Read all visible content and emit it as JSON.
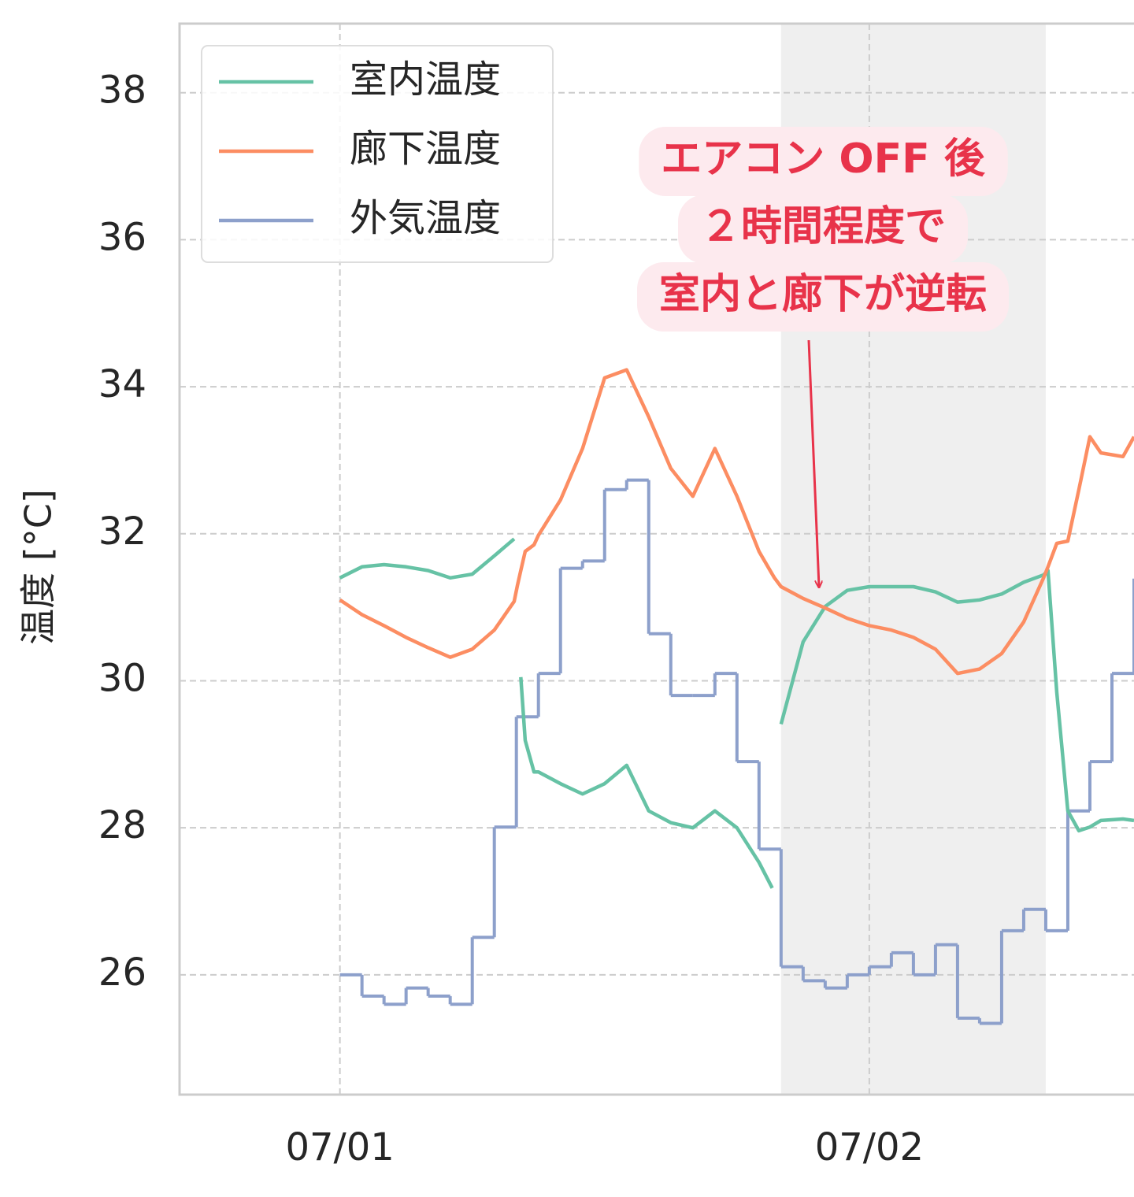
{
  "chart_data": {
    "type": "line",
    "ylabel": "温度 [°C]",
    "x": [
      0,
      1,
      2,
      3,
      4,
      5,
      6,
      7,
      7.9,
      8.05,
      8.2,
      8.4,
      8.8,
      9,
      10,
      11,
      12,
      13,
      14,
      15,
      16,
      17,
      18,
      19,
      19.6,
      19.7,
      20,
      21,
      22,
      23,
      24,
      25,
      26,
      27,
      28,
      29,
      30,
      31,
      31.9,
      32.1,
      32.5,
      33,
      33.5,
      34,
      34.5,
      35.5,
      36
    ],
    "series": [
      {
        "name": "室内温度",
        "color": "#66c2a5",
        "values": [
          31.4,
          31.55,
          31.58,
          31.55,
          31.5,
          31.4,
          31.45,
          31.7,
          31.93,
          null,
          30.05,
          29.19,
          28.76,
          28.76,
          28.6,
          28.46,
          28.6,
          28.85,
          28.23,
          28.07,
          28.0,
          28.23,
          28.0,
          27.53,
          27.18,
          null,
          29.41,
          30.53,
          31.01,
          31.23,
          31.28,
          31.28,
          31.28,
          31.21,
          31.07,
          31.1,
          31.18,
          31.34,
          31.44,
          31.5,
          29.84,
          28.23,
          27.96,
          28.01,
          28.1,
          28.12,
          28.1
        ]
      },
      {
        "name": "廊下温度",
        "color": "#fc8d62",
        "values": [
          31.1,
          30.9,
          30.75,
          30.59,
          30.45,
          30.32,
          30.43,
          30.69,
          31.08,
          31.3,
          31.5,
          31.76,
          31.85,
          31.98,
          32.46,
          33.16,
          34.12,
          34.23,
          33.59,
          32.89,
          32.51,
          33.16,
          32.51,
          31.76,
          31.45,
          31.4,
          31.28,
          31.12,
          30.99,
          30.85,
          30.75,
          30.69,
          30.59,
          30.43,
          30.1,
          30.16,
          30.37,
          30.8,
          31.4,
          31.55,
          31.87,
          31.9,
          32.6,
          33.32,
          33.1,
          33.05,
          33.32
        ]
      }
    ],
    "steps": {
      "name": "外気温度",
      "color": "#8da0cb",
      "x": [
        0,
        1,
        2,
        3,
        4,
        5,
        6,
        7,
        8,
        9,
        10,
        11,
        12,
        13,
        14,
        15,
        16,
        17,
        18,
        19,
        20,
        21,
        22,
        23,
        24,
        25,
        26,
        27,
        28,
        29,
        30,
        31,
        32,
        33,
        34,
        35,
        36
      ],
      "values": [
        26.0,
        25.71,
        25.6,
        25.82,
        25.71,
        25.6,
        26.51,
        28.01,
        29.51,
        30.1,
        31.53,
        31.63,
        32.6,
        32.73,
        30.64,
        29.8,
        29.8,
        30.1,
        28.9,
        27.71,
        26.11,
        25.92,
        25.82,
        26.0,
        26.11,
        26.3,
        26.0,
        26.41,
        25.41,
        25.34,
        26.6,
        26.89,
        26.6,
        28.23,
        28.9,
        30.1,
        31.39
      ]
    },
    "xlim": [
      -7.27,
      36
    ],
    "xticks": [
      {
        "value": 0,
        "label": "07/01"
      },
      {
        "value": 24,
        "label": "07/02"
      }
    ],
    "ylim": [
      24.37,
      38.94
    ],
    "yticks": [
      26,
      28,
      30,
      32,
      34,
      36,
      38
    ],
    "grid": true,
    "legend": "upper left",
    "highlight": {
      "x": [
        20,
        32
      ],
      "color": "#efefef"
    },
    "annotation": {
      "lines": [
        "エアコン OFF 後",
        "２時間程度で",
        "室内と廊下が逆転"
      ],
      "color": "#e8334a"
    }
  }
}
